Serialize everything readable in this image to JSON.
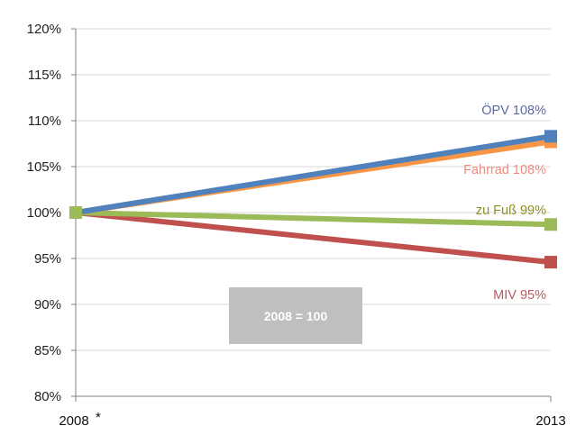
{
  "chart_data": {
    "type": "line",
    "x": [
      "2008",
      "2013"
    ],
    "x_tick_labels": [
      "2008",
      "2013"
    ],
    "x_first_marker": "*",
    "ylim": [
      0.8,
      1.2
    ],
    "y_ticks": [
      0.8,
      0.85,
      0.9,
      0.95,
      1.0,
      1.05,
      1.1,
      1.15,
      1.2
    ],
    "y_tick_labels": [
      "80%",
      "85%",
      "90%",
      "95%",
      "100%",
      "105%",
      "110%",
      "115%",
      "120%"
    ],
    "grid": "horizontal",
    "series": [
      {
        "name": "ÖPV",
        "label": "ÖPV 108%",
        "values": [
          1.0,
          1.083
        ],
        "color": "#4f81bd",
        "label_color": "#5b6aa9"
      },
      {
        "name": "Fahrrad",
        "label": "Fahrrad 108%",
        "values": [
          1.0,
          1.077
        ],
        "color": "#f79646",
        "label_color": "#f08a7e"
      },
      {
        "name": "zu Fuß",
        "label": "zu Fuß 99%",
        "values": [
          1.0,
          0.987
        ],
        "color": "#9bbb59",
        "label_color": "#8f8f1f"
      },
      {
        "name": "MIV",
        "label": "MIV 95%",
        "values": [
          1.0,
          0.946
        ],
        "color": "#c0504d",
        "label_color": "#b85a62"
      }
    ],
    "annotation": {
      "text": "2008 = 100",
      "bg": "#bfbfbf",
      "color": "#ffffff"
    }
  }
}
